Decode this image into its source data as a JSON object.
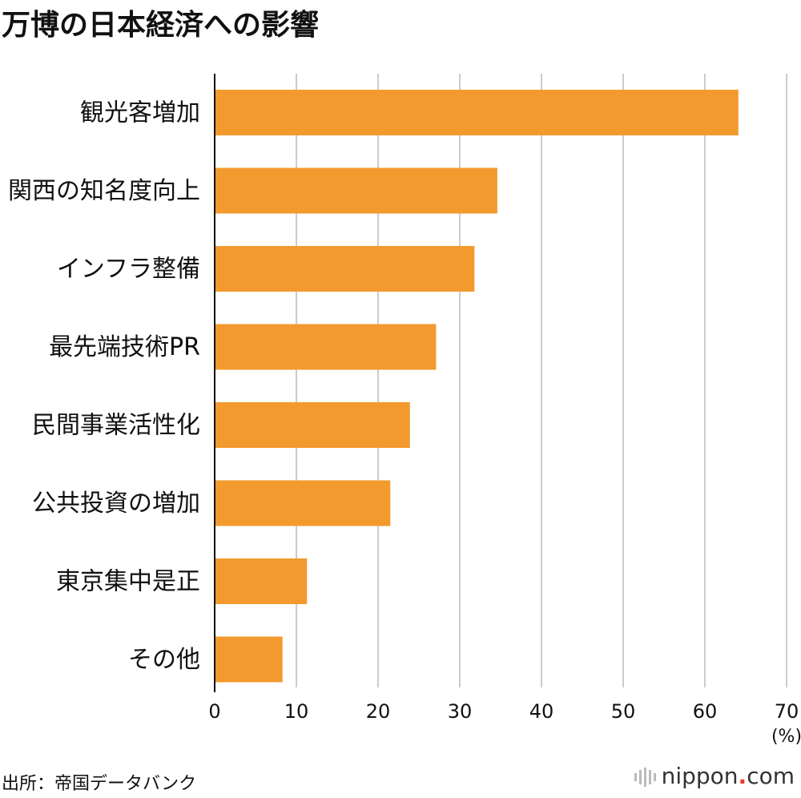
{
  "chart_data": {
    "type": "bar",
    "orientation": "horizontal",
    "title": "万博の日本経済への影響",
    "categories": [
      "観光客増加",
      "関西の知名度向上",
      "インフラ整備",
      "最先端技術PR",
      "民間事業活性化",
      "公共投資の増加",
      "東京集中是正",
      "その他"
    ],
    "values": [
      64.1,
      34.6,
      31.8,
      27.1,
      23.9,
      21.5,
      11.3,
      8.3
    ],
    "xlim": [
      0,
      70
    ],
    "xticks": [
      "0",
      "10",
      "20",
      "30",
      "40",
      "50",
      "60",
      "70"
    ],
    "xunit": "(%)",
    "grid": true,
    "bar_color": "#f29a2e"
  },
  "footer": {
    "source": "出所：帝国データバンク",
    "brand_name": "nippon",
    "brand_dot": ".",
    "brand_domain": "com"
  },
  "colors": {
    "grid": "#cccccc",
    "axis": "#111111",
    "brand_accent": "#e83a2f"
  }
}
